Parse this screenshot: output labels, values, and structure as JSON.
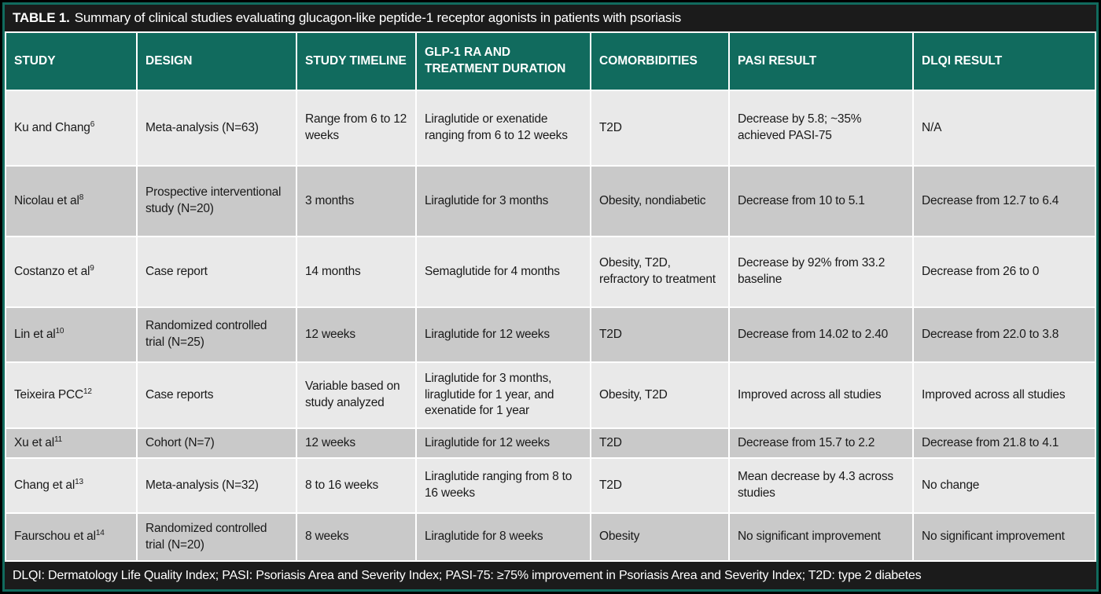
{
  "title": {
    "label": "TABLE 1.",
    "text": "Summary of clinical studies evaluating glucagon-like peptide-1 receptor agonists in patients with psoriasis"
  },
  "columns": {
    "study": "STUDY",
    "design": "DESIGN",
    "timeline": "STUDY TIMELINE",
    "treatment": "GLP-1 RA AND TREATMENT DURATION",
    "comorbidities": "COMORBIDITIES",
    "pasi": "PASI RESULT",
    "dlqi": "DLQI RESULT"
  },
  "rows": [
    {
      "study": {
        "name": "Ku and Chang",
        "sup": "6"
      },
      "design": "Meta-analysis (N=63)",
      "timeline": "Range from 6 to 12 weeks",
      "treatment": "Liraglutide or exenatide ranging from 6 to 12 weeks",
      "comorbidities": "T2D",
      "pasi": "Decrease by 5.8; ~35% achieved PASI-75",
      "dlqi": "N/A"
    },
    {
      "study": {
        "name": "Nicolau et al",
        "sup": "8"
      },
      "design": "Prospective interventional study (N=20)",
      "timeline": "3 months",
      "treatment": "Liraglutide for 3 months",
      "comorbidities": "Obesity, nondiabetic",
      "pasi": "Decrease from 10 to 5.1",
      "dlqi": "Decrease from 12.7 to 6.4"
    },
    {
      "study": {
        "name": "Costanzo et al",
        "sup": "9"
      },
      "design": "Case report",
      "timeline": "14 months",
      "treatment": "Semaglutide for 4 months",
      "comorbidities": "Obesity, T2D, refractory to treatment",
      "pasi": "Decrease by 92% from 33.2 baseline",
      "dlqi": "Decrease from 26 to 0"
    },
    {
      "study": {
        "name": "Lin et al",
        "sup": "10"
      },
      "design": "Randomized controlled trial (N=25)",
      "timeline": "12 weeks",
      "treatment": "Liraglutide for 12 weeks",
      "comorbidities": "T2D",
      "pasi": "Decrease from 14.02 to 2.40",
      "dlqi": "Decrease from 22.0 to 3.8"
    },
    {
      "study": {
        "name": "Teixeira PCC",
        "sup": "12"
      },
      "design": "Case reports",
      "timeline": "Variable based on study analyzed",
      "treatment": "Liraglutide for 3 months, liraglutide for 1 year, and exenatide for 1 year",
      "comorbidities": "Obesity, T2D",
      "pasi": "Improved across all studies",
      "dlqi": "Improved across all studies"
    },
    {
      "study": {
        "name": "Xu et al",
        "sup": "11"
      },
      "design": "Cohort (N=7)",
      "timeline": "12 weeks",
      "treatment": "Liraglutide for 12 weeks",
      "comorbidities": "T2D",
      "pasi": "Decrease from 15.7 to 2.2",
      "dlqi": "Decrease from 21.8 to 4.1"
    },
    {
      "study": {
        "name": "Chang et al",
        "sup": "13"
      },
      "design": "Meta-analysis (N=32)",
      "timeline": "8 to 16 weeks",
      "treatment": "Liraglutide ranging from 8 to 16 weeks",
      "comorbidities": "T2D",
      "pasi": "Mean decrease by 4.3 across studies",
      "dlqi": "No change"
    },
    {
      "study": {
        "name": "Faurschou et al",
        "sup": "14"
      },
      "design": "Randomized controlled trial (N=20)",
      "timeline": "8 weeks",
      "treatment": "Liraglutide for 8 weeks",
      "comorbidities": "Obesity",
      "pasi": "No significant improvement",
      "dlqi": "No significant improvement"
    }
  ],
  "footnote": "DLQI: Dermatology Life Quality Index; PASI: Psoriasis Area and Severity Index; PASI-75: ≥75% improvement in Psoriasis Area and Severity Index; T2D: type 2 diabetes",
  "colors": {
    "teal": "#116B5E",
    "bar_black": "#1B1B1B",
    "row_light": "#E9E9E9",
    "row_dark": "#C9C9C9"
  }
}
